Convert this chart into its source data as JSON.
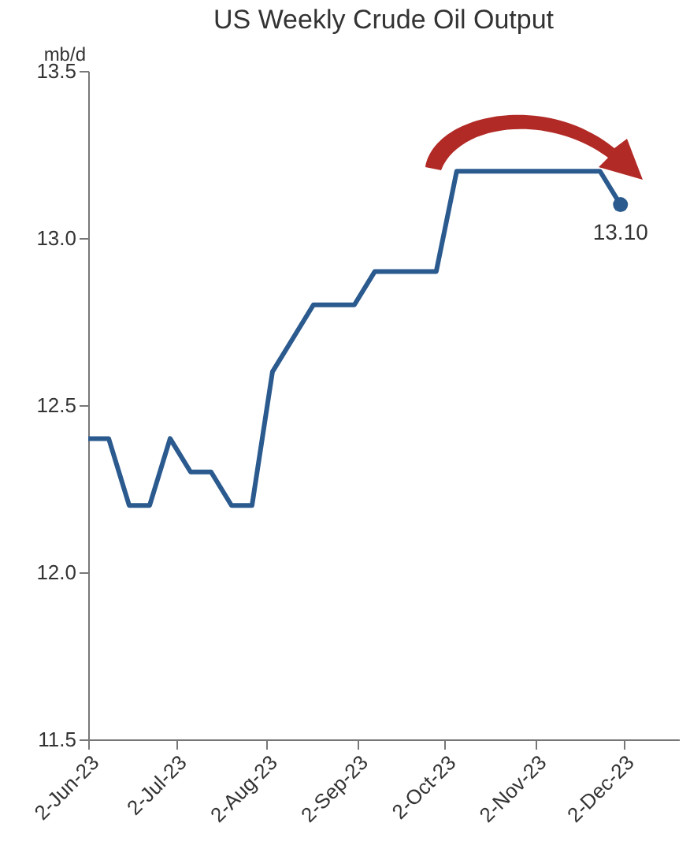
{
  "chart_data": {
    "type": "line",
    "title": "US Weekly Crude Oil Output",
    "ylabel": "mb/d",
    "x": [
      "2023-06-02",
      "2023-06-09",
      "2023-06-16",
      "2023-06-23",
      "2023-06-30",
      "2023-07-07",
      "2023-07-14",
      "2023-07-21",
      "2023-07-28",
      "2023-08-04",
      "2023-08-11",
      "2023-08-18",
      "2023-08-25",
      "2023-09-01",
      "2023-09-08",
      "2023-09-15",
      "2023-09-22",
      "2023-09-29",
      "2023-10-06",
      "2023-10-13",
      "2023-10-20",
      "2023-10-27",
      "2023-11-03",
      "2023-11-10",
      "2023-11-17",
      "2023-11-24",
      "2023-12-01"
    ],
    "series": [
      {
        "color": "#2b5a8f",
        "values": [
          12.4,
          12.4,
          12.2,
          12.2,
          12.4,
          12.3,
          12.3,
          12.2,
          12.2,
          12.6,
          12.7,
          12.8,
          12.8,
          12.8,
          12.9,
          12.9,
          12.9,
          12.9,
          13.2,
          13.2,
          13.2,
          13.2,
          13.2,
          13.2,
          13.2,
          13.2,
          13.1
        ]
      }
    ],
    "xlim": [
      "2023-06-02",
      "2023-12-21"
    ],
    "xticks": [
      {
        "value": "2023-06-02",
        "label": "2-Jun-23"
      },
      {
        "value": "2023-07-02",
        "label": "2-Jul-23"
      },
      {
        "value": "2023-08-02",
        "label": "2-Aug-23"
      },
      {
        "value": "2023-09-02",
        "label": "2-Sep-23"
      },
      {
        "value": "2023-10-02",
        "label": "2-Oct-23"
      },
      {
        "value": "2023-11-02",
        "label": "2-Nov-23"
      },
      {
        "value": "2023-12-02",
        "label": "2-Dec-23"
      }
    ],
    "ylim": [
      11.5,
      13.5
    ],
    "yticks": [
      11.5,
      {
        "value": 12,
        "label": "12.0"
      },
      12.5,
      {
        "value": 13,
        "label": "13.0"
      },
      13.5
    ],
    "annotations": [
      {
        "text": "13.10",
        "x": "2023-12-01",
        "y": 13.1
      }
    ],
    "grid": false,
    "marker": "none",
    "line_style": "solid"
  }
}
